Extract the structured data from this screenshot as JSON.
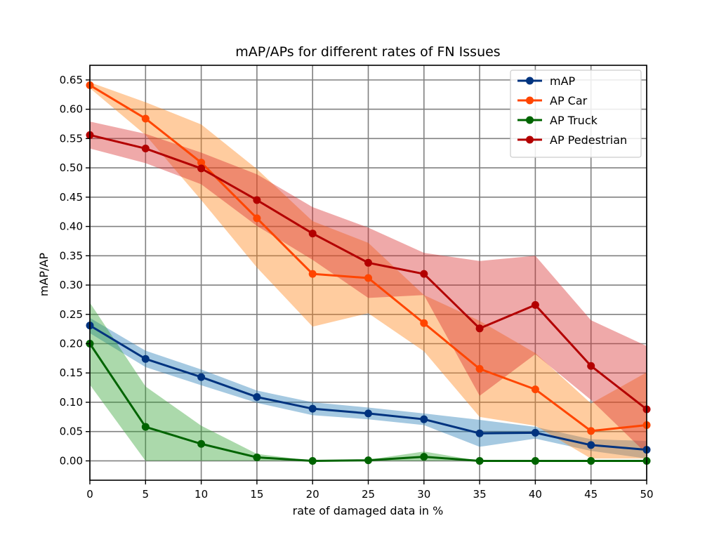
{
  "chart_data": {
    "type": "line",
    "title": "mAP/APs for different rates of FN Issues",
    "xlabel": "rate of damaged data in %",
    "ylabel": "mAP/AP",
    "xlim": [
      0,
      50
    ],
    "ylim": [
      -0.033,
      0.675
    ],
    "x_ticks": [
      0,
      5,
      10,
      15,
      20,
      25,
      30,
      35,
      40,
      45,
      50
    ],
    "y_ticks": [
      0.0,
      0.05,
      0.1,
      0.15,
      0.2,
      0.25,
      0.3,
      0.35,
      0.4,
      0.45,
      0.5,
      0.55,
      0.6,
      0.65
    ],
    "y_tick_labels": [
      "0.00",
      "0.05",
      "0.10",
      "0.15",
      "0.20",
      "0.25",
      "0.30",
      "0.35",
      "0.40",
      "0.45",
      "0.50",
      "0.55",
      "0.60",
      "0.65"
    ],
    "grid": true,
    "legend_position": "top-right",
    "x": [
      0,
      5,
      10,
      15,
      20,
      25,
      30,
      35,
      40,
      45,
      50
    ],
    "series": [
      {
        "name": "mAP",
        "line_color": "#00337f",
        "band_color": "#1f77b4",
        "values": [
          0.231,
          0.174,
          0.143,
          0.109,
          0.089,
          0.081,
          0.071,
          0.047,
          0.048,
          0.027,
          0.019
        ],
        "lower": [
          0.218,
          0.16,
          0.129,
          0.099,
          0.078,
          0.071,
          0.061,
          0.024,
          0.038,
          0.017,
          0.004
        ],
        "upper": [
          0.244,
          0.188,
          0.156,
          0.12,
          0.1,
          0.091,
          0.081,
          0.07,
          0.058,
          0.037,
          0.034
        ]
      },
      {
        "name": "AP Car",
        "line_color": "#ff4500",
        "band_color": "#ff7f0e",
        "values": [
          0.641,
          0.584,
          0.509,
          0.414,
          0.319,
          0.312,
          0.235,
          0.157,
          0.122,
          0.051,
          0.061
        ],
        "lower": [
          0.636,
          0.556,
          0.445,
          0.33,
          0.229,
          0.252,
          0.187,
          0.075,
          0.06,
          0.004,
          0.004
        ],
        "upper": [
          0.646,
          0.612,
          0.574,
          0.498,
          0.409,
          0.372,
          0.283,
          0.239,
          0.184,
          0.098,
          0.151
        ]
      },
      {
        "name": "AP Truck",
        "line_color": "#006400",
        "band_color": "#2ca02c",
        "values": [
          0.2,
          0.058,
          0.029,
          0.006,
          0.0,
          0.001,
          0.007,
          0.0,
          0.0,
          0.0,
          0.0
        ],
        "lower": [
          0.13,
          0.0,
          0.0,
          0.0,
          0.0,
          0.0,
          0.0,
          0.0,
          0.0,
          0.0,
          0.0
        ],
        "upper": [
          0.27,
          0.127,
          0.06,
          0.012,
          0.0,
          0.002,
          0.016,
          0.0,
          0.0,
          0.0,
          0.0
        ]
      },
      {
        "name": "AP Pedestrian",
        "line_color": "#b30000",
        "band_color": "#d62728",
        "values": [
          0.556,
          0.533,
          0.499,
          0.445,
          0.388,
          0.338,
          0.319,
          0.226,
          0.266,
          0.162,
          0.088
        ],
        "lower": [
          0.533,
          0.508,
          0.472,
          0.401,
          0.343,
          0.278,
          0.283,
          0.111,
          0.182,
          0.104,
          0.012
        ],
        "upper": [
          0.579,
          0.558,
          0.526,
          0.489,
          0.433,
          0.398,
          0.355,
          0.341,
          0.35,
          0.24,
          0.196
        ]
      }
    ]
  }
}
